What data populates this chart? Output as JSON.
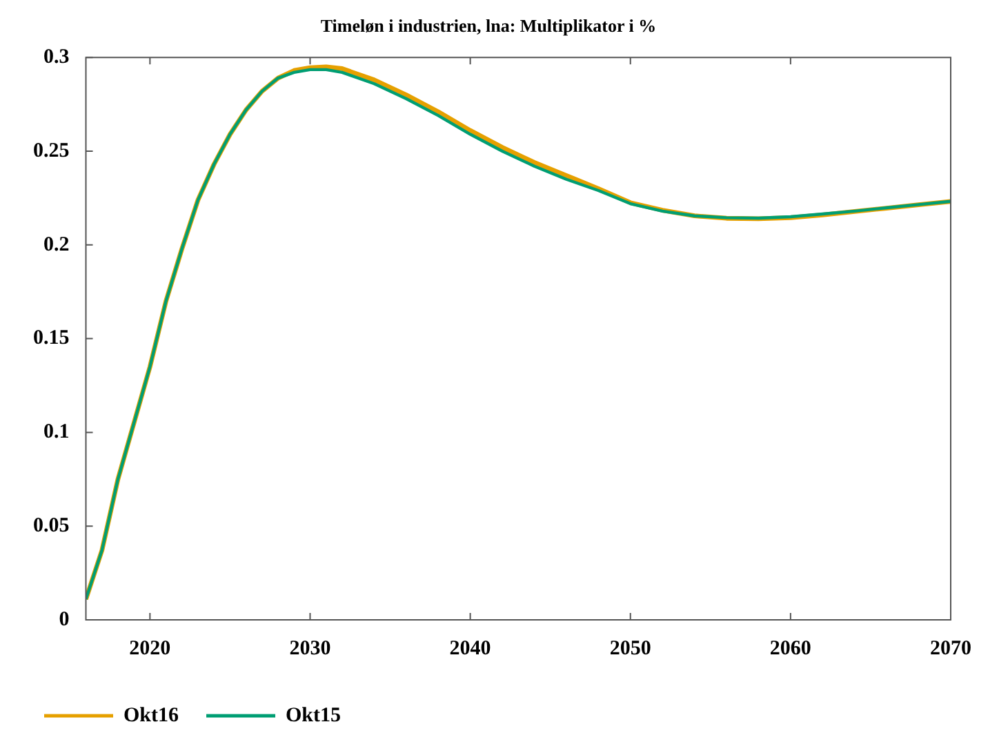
{
  "chart_data": {
    "type": "line",
    "title": "Timeløn i industrien, lna: Multiplikator i %",
    "x": [
      2016,
      2017,
      2018,
      2019,
      2020,
      2021,
      2022,
      2023,
      2024,
      2025,
      2026,
      2027,
      2028,
      2029,
      2030,
      2031,
      2032,
      2034,
      2036,
      2038,
      2040,
      2042,
      2044,
      2046,
      2048,
      2050,
      2052,
      2054,
      2056,
      2058,
      2060,
      2062,
      2064,
      2066,
      2068,
      2070
    ],
    "series": [
      {
        "name": "Okt16",
        "color": "#e6a000",
        "values": [
          0.011,
          0.037,
          0.075,
          0.105,
          0.135,
          0.17,
          0.198,
          0.224,
          0.243,
          0.259,
          0.272,
          0.282,
          0.289,
          0.293,
          0.2945,
          0.295,
          0.294,
          0.288,
          0.28,
          0.271,
          0.261,
          0.252,
          0.244,
          0.237,
          0.23,
          0.2225,
          0.2185,
          0.2155,
          0.2142,
          0.214,
          0.2145,
          0.216,
          0.2178,
          0.2196,
          0.2214,
          0.2232
        ]
      },
      {
        "name": "Okt15",
        "color": "#009e73",
        "values": [
          0.011,
          0.037,
          0.075,
          0.105,
          0.135,
          0.17,
          0.198,
          0.224,
          0.243,
          0.259,
          0.272,
          0.282,
          0.289,
          0.292,
          0.2935,
          0.2935,
          0.292,
          0.286,
          0.278,
          0.269,
          0.259,
          0.25,
          0.242,
          0.235,
          0.229,
          0.222,
          0.218,
          0.2155,
          0.2145,
          0.2143,
          0.215,
          0.2165,
          0.218,
          0.2198,
          0.2215,
          0.2232
        ]
      }
    ],
    "xlim": [
      2016,
      2070
    ],
    "xticks": [
      2020,
      2030,
      2040,
      2050,
      2060,
      2070
    ],
    "ylim": [
      0,
      0.3
    ],
    "yticks": [
      0,
      0.05,
      0.1,
      0.15,
      0.2,
      0.25,
      0.3
    ],
    "legend": "bottom left",
    "marker": "none",
    "line_style": "solid"
  }
}
